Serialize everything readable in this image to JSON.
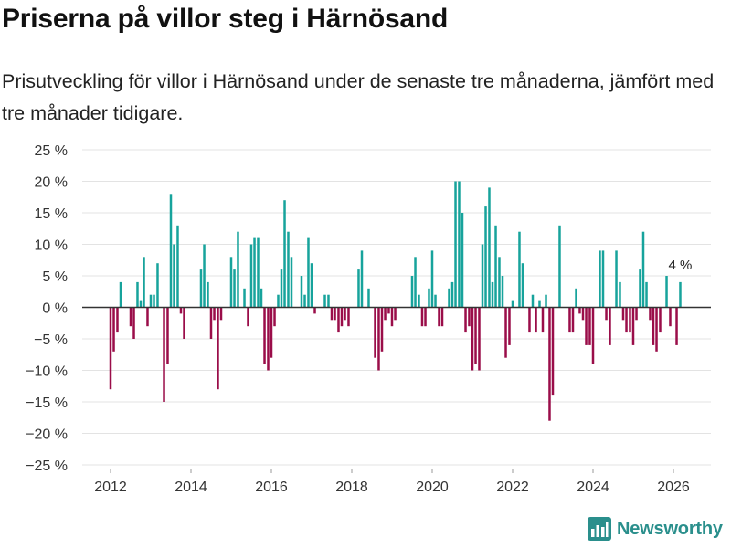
{
  "header": {
    "title": "Priserna på villor steg i Härnösand",
    "subtitle": "Prisutveckling för villor i Härnösand under de senaste tre månaderna, jämfört med tre månader tidigare."
  },
  "brand": {
    "name": "Newsworthy"
  },
  "colors": {
    "positive": "#17a39c",
    "negative": "#9a0d49",
    "grid": "#e3e3e3",
    "zero": "#333333"
  },
  "chart_data": {
    "type": "bar",
    "title": "Priserna på villor steg i Härnösand",
    "xlabel": "",
    "ylabel": "",
    "ylim": [
      -25,
      25
    ],
    "yticks": [
      25,
      20,
      15,
      10,
      5,
      0,
      -5,
      -10,
      -15,
      -20,
      -25
    ],
    "ytick_labels": [
      "25 %",
      "20 %",
      "15 %",
      "10 %",
      "5 %",
      "0 %",
      "−5 %",
      "−10 %",
      "−15 %",
      "−20 %",
      "−25 %"
    ],
    "xticks": [
      2012,
      2014,
      2016,
      2018,
      2020,
      2022,
      2024,
      2026
    ],
    "xtick_labels": [
      "2012",
      "2014",
      "2016",
      "2018",
      "2020",
      "2022",
      "2024",
      "2026"
    ],
    "x_unit": "year (decimal, monthly bars)",
    "annotation": {
      "x": 2026.17,
      "y": 4,
      "text": "4 %"
    },
    "series": [
      {
        "name": "Prisutveckling",
        "x": [
          2012.0,
          2012.08,
          2012.17,
          2012.25,
          2012.33,
          2012.42,
          2012.5,
          2012.58,
          2012.67,
          2012.75,
          2012.83,
          2012.92,
          2013.0,
          2013.08,
          2013.17,
          2013.25,
          2013.33,
          2013.42,
          2013.5,
          2013.58,
          2013.67,
          2013.75,
          2013.83,
          2013.92,
          2014.0,
          2014.08,
          2014.17,
          2014.25,
          2014.33,
          2014.42,
          2014.5,
          2014.58,
          2014.67,
          2014.75,
          2014.83,
          2014.92,
          2015.0,
          2015.08,
          2015.17,
          2015.25,
          2015.33,
          2015.42,
          2015.5,
          2015.58,
          2015.67,
          2015.75,
          2015.83,
          2015.92,
          2016.0,
          2016.08,
          2016.17,
          2016.25,
          2016.33,
          2016.42,
          2016.5,
          2016.58,
          2016.67,
          2016.75,
          2016.83,
          2016.92,
          2017.0,
          2017.08,
          2017.17,
          2017.25,
          2017.33,
          2017.42,
          2017.5,
          2017.58,
          2017.67,
          2017.75,
          2017.83,
          2017.92,
          2018.0,
          2018.08,
          2018.17,
          2018.25,
          2018.33,
          2018.42,
          2018.5,
          2018.58,
          2018.67,
          2018.75,
          2018.83,
          2018.92,
          2019.0,
          2019.08,
          2019.17,
          2019.25,
          2019.33,
          2019.42,
          2019.5,
          2019.58,
          2019.67,
          2019.75,
          2019.83,
          2019.92,
          2020.0,
          2020.08,
          2020.17,
          2020.25,
          2020.33,
          2020.42,
          2020.5,
          2020.58,
          2020.67,
          2020.75,
          2020.83,
          2020.92,
          2021.0,
          2021.08,
          2021.17,
          2021.25,
          2021.33,
          2021.42,
          2021.5,
          2021.58,
          2021.67,
          2021.75,
          2021.83,
          2021.92,
          2022.0,
          2022.08,
          2022.17,
          2022.25,
          2022.33,
          2022.42,
          2022.5,
          2022.58,
          2022.67,
          2022.75,
          2022.83,
          2022.92,
          2023.0,
          2023.08,
          2023.17,
          2023.25,
          2023.33,
          2023.42,
          2023.5,
          2023.58,
          2023.67,
          2023.75,
          2023.83,
          2023.92,
          2024.0,
          2024.08,
          2024.17,
          2024.25,
          2024.33,
          2024.42,
          2024.5,
          2024.58,
          2024.67,
          2024.75,
          2024.83,
          2024.92,
          2025.0,
          2025.08,
          2025.17,
          2025.25,
          2025.33,
          2025.42,
          2025.5,
          2025.58,
          2025.67,
          2025.75,
          2025.83,
          2025.92,
          2026.0,
          2026.08,
          2026.17
        ],
        "values": [
          -13,
          -7,
          -4,
          4,
          0,
          0,
          -3,
          -5,
          4,
          1,
          8,
          -3,
          2,
          2,
          7,
          0,
          -15,
          -9,
          18,
          10,
          13,
          -1,
          -5,
          0,
          0,
          0,
          0,
          6,
          10,
          4,
          -5,
          -2,
          -13,
          -2,
          0,
          0,
          8,
          6,
          12,
          0,
          3,
          -3,
          10,
          11,
          11,
          3,
          -9,
          -10,
          -8,
          -3,
          2,
          6,
          17,
          12,
          8,
          0,
          0,
          5,
          2,
          11,
          7,
          -1,
          0,
          0,
          2,
          2,
          -2,
          -2,
          -4,
          -3,
          -2,
          -3,
          0,
          0,
          6,
          9,
          0,
          3,
          0,
          -8,
          -10,
          -7,
          -2,
          -1,
          -3,
          -2,
          0,
          0,
          0,
          0,
          5,
          8,
          2,
          -3,
          -3,
          3,
          9,
          2,
          -3,
          -3,
          0,
          3,
          4,
          20,
          20,
          15,
          -4,
          -3,
          -10,
          -9,
          -10,
          10,
          16,
          19,
          4,
          13,
          8,
          5,
          -8,
          -6,
          1,
          0,
          12,
          7,
          0,
          -4,
          2,
          -4,
          1,
          -4,
          2,
          -18,
          -14,
          0,
          13,
          0,
          0,
          -4,
          -4,
          3,
          -1,
          -2,
          -6,
          -6,
          -9,
          0,
          9,
          9,
          -2,
          -6,
          0,
          9,
          4,
          -2,
          -4,
          -4,
          -6,
          -2,
          6,
          12,
          4,
          -2,
          -6,
          -7,
          -4,
          0,
          5,
          -3,
          0,
          -6,
          4
        ]
      }
    ]
  }
}
